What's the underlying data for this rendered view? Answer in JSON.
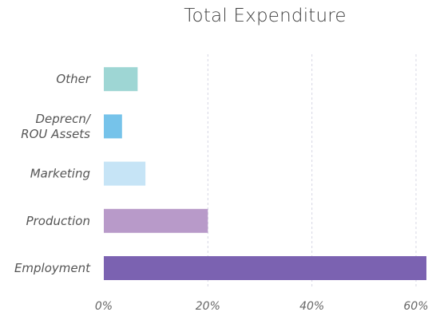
{
  "chart_data": {
    "type": "bar",
    "orientation": "horizontal",
    "title": "Total Expenditure",
    "xlabel": "",
    "ylabel": "",
    "categories": [
      [
        "Employment"
      ],
      [
        "Production"
      ],
      [
        "Marketing"
      ],
      [
        "Deprecn/",
        "ROU Assets"
      ],
      [
        "Other"
      ]
    ],
    "values": [
      62,
      20,
      8,
      3.5,
      6.5
    ],
    "colors": [
      "#7b62b1",
      "#b89ac9",
      "#c6e4f6",
      "#76c3ea",
      "#9ed6d4"
    ],
    "xlim": [
      0,
      62
    ],
    "xticks": [
      0,
      20,
      40,
      60
    ],
    "xtick_labels": [
      "0%",
      "20%",
      "40%",
      "60%"
    ],
    "grid": "vertical-dashed",
    "legend": "none"
  }
}
